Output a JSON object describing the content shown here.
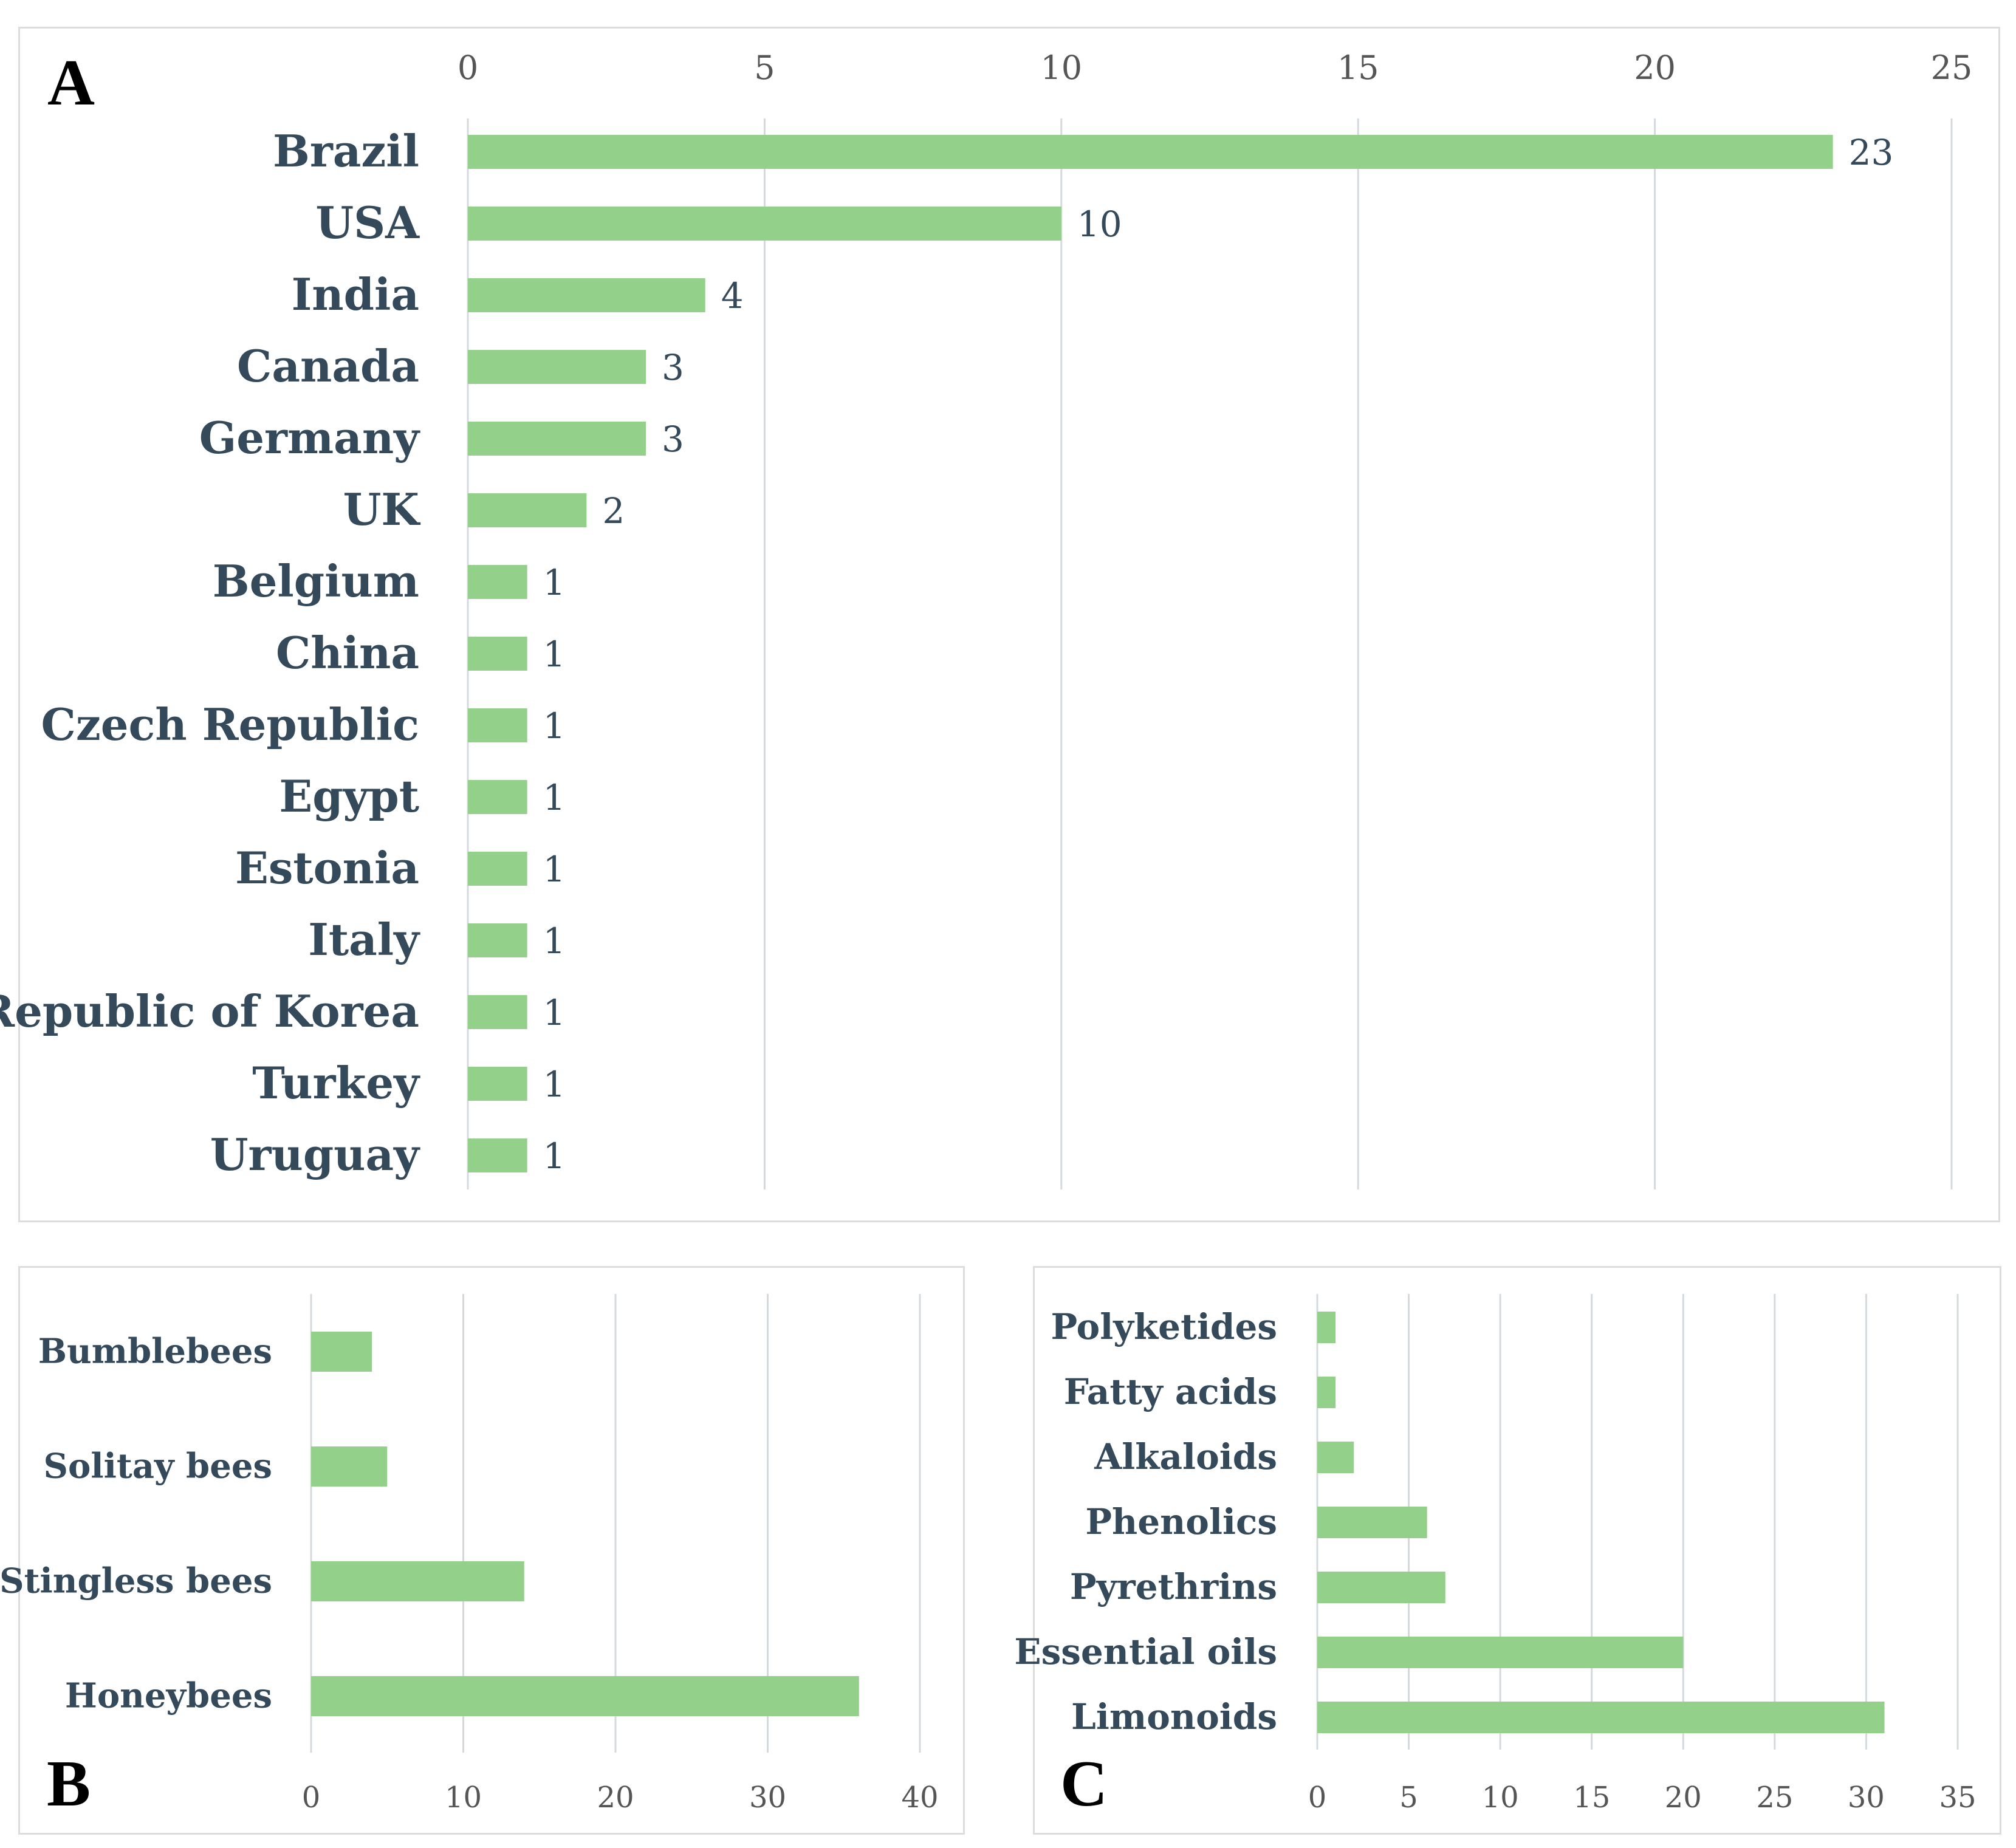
{
  "colors": {
    "bar": "#93d18a",
    "grid": "#d4d9de",
    "category_text": "#34495a",
    "tick_text": "#555555"
  },
  "chart_data": [
    {
      "panel": "A",
      "type": "bar",
      "orientation": "horizontal",
      "categories": [
        "Brazil",
        "USA",
        "India",
        "Canada",
        "Germany",
        "UK",
        "Belgium",
        "China",
        "Czech Republic",
        "Egypt",
        "Estonia",
        "Italy",
        "Republic of Korea",
        "Turkey",
        "Uruguay"
      ],
      "values": [
        23,
        10,
        4,
        3,
        3,
        2,
        1,
        1,
        1,
        1,
        1,
        1,
        1,
        1,
        1
      ],
      "data_labels": true,
      "xlim": [
        0,
        25
      ],
      "xticks": [
        0,
        5,
        10,
        15,
        20,
        25
      ],
      "xaxis_position": "top",
      "grid": true
    },
    {
      "panel": "B",
      "type": "bar",
      "orientation": "horizontal",
      "categories": [
        "Bumblebees",
        "Solitay bees",
        "Stingless bees",
        "Honeybees"
      ],
      "values": [
        4,
        5,
        14,
        36
      ],
      "data_labels": false,
      "xlim": [
        0,
        40
      ],
      "xticks": [
        0,
        10,
        20,
        30,
        40
      ],
      "xaxis_position": "bottom",
      "grid": true
    },
    {
      "panel": "C",
      "type": "bar",
      "orientation": "horizontal",
      "categories": [
        "Polyketides",
        "Fatty acids",
        "Alkaloids",
        "Phenolics",
        "Pyrethrins",
        "Essential oils",
        "Limonoids"
      ],
      "values": [
        1,
        1,
        2,
        6,
        7,
        20,
        31
      ],
      "data_labels": false,
      "xlim": [
        0,
        35
      ],
      "xticks": [
        0,
        5,
        10,
        15,
        20,
        25,
        30,
        35
      ],
      "xaxis_position": "bottom",
      "grid": true
    }
  ]
}
